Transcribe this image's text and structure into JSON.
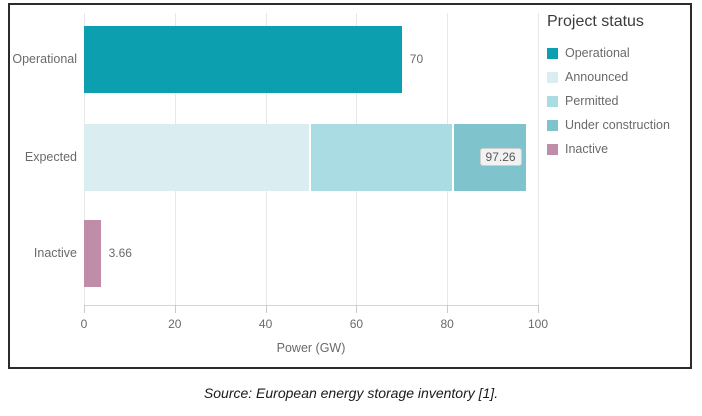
{
  "chart_data": {
    "type": "bar",
    "orientation": "horizontal",
    "title": "",
    "xlabel": "Power (GW)",
    "ylabel": "",
    "xlim": [
      0,
      100
    ],
    "xticks": [
      0,
      20,
      40,
      60,
      80,
      100
    ],
    "grid": true,
    "legend_position": "right",
    "categories": [
      "Operational",
      "Expected",
      "Inactive"
    ],
    "bars": [
      {
        "category": "Operational",
        "segments": [
          {
            "name": "Operational",
            "value": 70
          }
        ],
        "total": 70,
        "label": "70",
        "label_style": "outside"
      },
      {
        "category": "Expected",
        "segments": [
          {
            "name": "Announced",
            "value": 49.9
          },
          {
            "name": "Permitted",
            "value": 31.6
          },
          {
            "name": "Under construction",
            "value": 15.76
          }
        ],
        "total": 97.26,
        "label": "97.26",
        "label_style": "boxed"
      },
      {
        "category": "Inactive",
        "segments": [
          {
            "name": "Inactive",
            "value": 3.66
          }
        ],
        "total": 3.66,
        "label": "3.66",
        "label_style": "outside"
      }
    ]
  },
  "legend": {
    "title": "Project status",
    "items": [
      {
        "label": "Operational",
        "color": "#0c9faf"
      },
      {
        "label": "Announced",
        "color": "#daedf0"
      },
      {
        "label": "Permitted",
        "color": "#aadde3"
      },
      {
        "label": "Under construction",
        "color": "#7fc3cd"
      },
      {
        "label": "Inactive",
        "color": "#bf8da8"
      }
    ]
  },
  "colors": {
    "gridline": "#e8e8e8",
    "axis_line": "#d4d4d4",
    "tick_mark": "#c9c9c9",
    "chart_border": "#2b2b2b",
    "label_text": "#6a6a6a"
  },
  "caption": "Source: European energy storage inventory [1]."
}
